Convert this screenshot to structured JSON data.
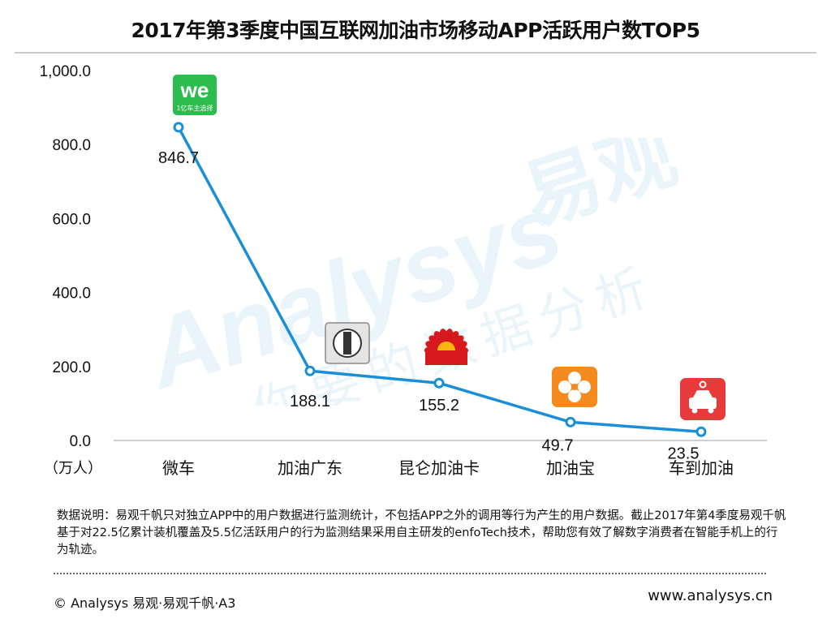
{
  "title": "2017年第3季度中国互联网加油市场移动APP活跃用户数TOP5",
  "watermark": {
    "brand": "Analysys",
    "brand_cn": "易观",
    "tagline": "你要的数据分析"
  },
  "chart_data": {
    "type": "line",
    "title": "2017年第3季度中国互联网加油市场移动APP活跃用户数TOP5",
    "ylabel": "（万人）",
    "ylim": [
      0,
      1000
    ],
    "yticks": [
      0,
      200,
      400,
      600,
      800,
      1000
    ],
    "ytick_labels": [
      "0.0",
      "200.0",
      "400.0",
      "600.0",
      "800.0",
      "1,000.0"
    ],
    "categories": [
      "微车",
      "加油广东",
      "昆仑加油卡",
      "加油宝",
      "车到加油"
    ],
    "values": [
      846.7,
      188.1,
      155.2,
      49.7,
      23.5
    ],
    "value_labels": [
      "846.7",
      "188.1",
      "155.2",
      "49.7",
      "23.5"
    ],
    "icons": [
      "weche-logo-icon",
      "sinopec-logo-icon",
      "petrochina-logo-icon",
      "flower-app-icon",
      "car-app-icon"
    ],
    "icon_texts": [
      "we",
      "1亿车主选择",
      "",
      "",
      ""
    ],
    "colors": {
      "line": "#1a8fd6",
      "weche": "#2dbd4f",
      "sinopec": "#8a8a8a",
      "petrochina_red": "#d7181d",
      "petrochina_yellow": "#f6b80f",
      "jiayoubao": "#f58a1f",
      "chedao": "#e73b3b"
    }
  },
  "note": {
    "text": "数据说明：易观千帆只对独立APP中的用户数据进行监测统计，不包括APP之外的调用等行为产生的用户数据。截止2017年第4季度易观千帆基于对22.5亿累计装机覆盖及5.5亿活跃用户的行为监测结果采用自主研发的enfoTech技术，帮助您有效了解数字消费者在智能手机上的行为轨迹。"
  },
  "footer": {
    "left": "© Analysys 易观·易观千帆·A3",
    "right": "www.analysys.cn"
  }
}
